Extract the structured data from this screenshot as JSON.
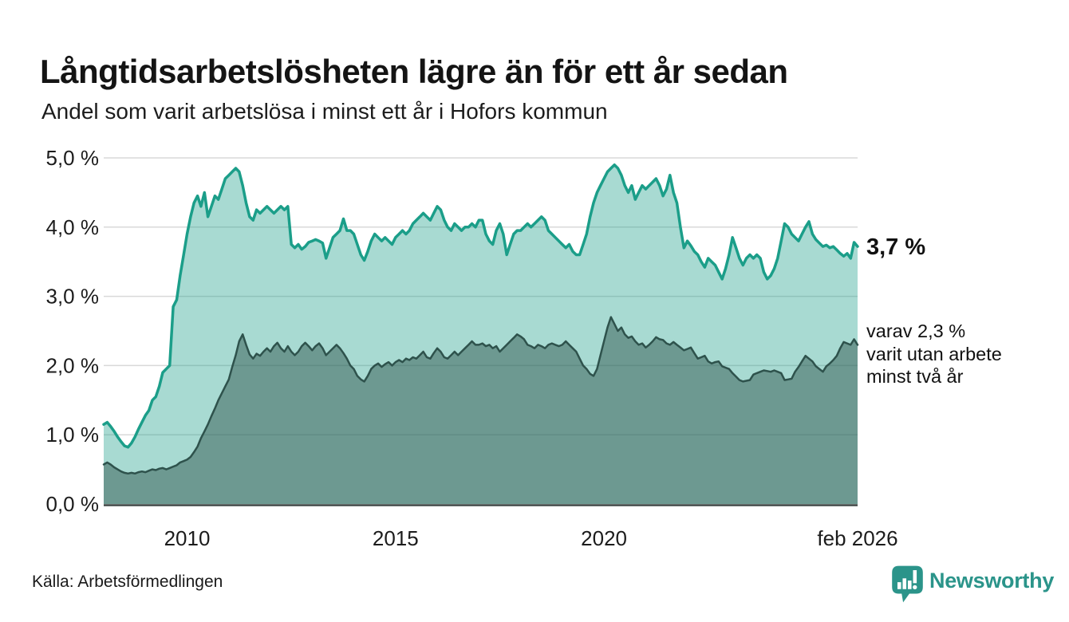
{
  "header": {
    "title": "Långtidsarbetslösheten lägre än för ett år sedan",
    "subtitle": "Andel som varit arbetslösa i minst ett år i Hofors kommun"
  },
  "annotations": {
    "latest_value": "3,7 %",
    "sub_line1": "varav 2,3 %",
    "sub_line2": "varit utan arbete",
    "sub_line3": "minst två år"
  },
  "footer": {
    "source": "Källa: Arbetsförmedlingen",
    "brand": "Newsworthy",
    "brand_icon": "bar-chart-pin-icon"
  },
  "colors": {
    "accent_teal": "#1b9e89",
    "accent_dark": "#2e524c",
    "light_fill_appearance": "#a5d6cf",
    "dark_fill_appearance": "#6f9e97",
    "gridline": "#d9d9d9",
    "baseline": "#3d4543",
    "text": "#1c1c1c",
    "brand_teal": "#2b948a"
  },
  "chart_data": {
    "type": "area",
    "title": "Långtidsarbetslösheten lägre än för ett år sedan",
    "subtitle": "Andel som varit arbetslösa i minst ett år i Hofors kommun",
    "unit": "%",
    "x_start": "2008-01",
    "x_end": "2026-02",
    "points_per_series": 218,
    "ylim": [
      0,
      5
    ],
    "grid": true,
    "legend": "none (annotated at line ends)",
    "y_ticks": [
      {
        "label": "5,0 %",
        "value": 5
      },
      {
        "label": "4,0 %",
        "value": 4
      },
      {
        "label": "3,0 %",
        "value": 3
      },
      {
        "label": "2,0 %",
        "value": 2
      },
      {
        "label": "1,0 %",
        "value": 1
      },
      {
        "label": "0,0 %",
        "value": 0
      }
    ],
    "x_ticks": [
      {
        "label": "2010",
        "month_index": 24
      },
      {
        "label": "2015",
        "month_index": 84
      },
      {
        "label": "2020",
        "month_index": 144
      },
      {
        "label": "feb 2026",
        "month_index": 217
      }
    ],
    "series": [
      {
        "name": "Arbetslösa minst ett år",
        "end_label": "3,7 %",
        "latest": 3.7,
        "color": "#1b9e89",
        "fill_opacity": 0.38,
        "stroke_width": 3.5,
        "values": [
          1.15,
          1.18,
          1.12,
          1.05,
          0.97,
          0.9,
          0.84,
          0.82,
          0.88,
          0.97,
          1.08,
          1.18,
          1.28,
          1.35,
          1.5,
          1.55,
          1.7,
          1.9,
          1.95,
          2.0,
          2.85,
          2.95,
          3.3,
          3.6,
          3.9,
          4.15,
          4.35,
          4.45,
          4.3,
          4.5,
          4.15,
          4.3,
          4.45,
          4.4,
          4.55,
          4.7,
          4.75,
          4.8,
          4.85,
          4.8,
          4.6,
          4.35,
          4.15,
          4.1,
          4.25,
          4.2,
          4.25,
          4.3,
          4.25,
          4.2,
          4.25,
          4.3,
          4.25,
          4.3,
          3.75,
          3.7,
          3.75,
          3.68,
          3.72,
          3.78,
          3.8,
          3.82,
          3.8,
          3.77,
          3.55,
          3.7,
          3.85,
          3.9,
          3.95,
          4.12,
          3.95,
          3.95,
          3.9,
          3.75,
          3.6,
          3.52,
          3.65,
          3.8,
          3.9,
          3.85,
          3.8,
          3.85,
          3.8,
          3.75,
          3.85,
          3.9,
          3.95,
          3.9,
          3.95,
          4.05,
          4.1,
          4.15,
          4.2,
          4.15,
          4.1,
          4.2,
          4.3,
          4.25,
          4.1,
          4.0,
          3.95,
          4.05,
          4.0,
          3.95,
          4.0,
          4.0,
          4.05,
          4.0,
          4.1,
          4.1,
          3.9,
          3.8,
          3.75,
          3.95,
          4.05,
          3.9,
          3.6,
          3.75,
          3.9,
          3.95,
          3.95,
          4.0,
          4.05,
          4.0,
          4.05,
          4.1,
          4.15,
          4.1,
          3.95,
          3.9,
          3.85,
          3.8,
          3.75,
          3.7,
          3.75,
          3.65,
          3.6,
          3.6,
          3.75,
          3.9,
          4.15,
          4.35,
          4.5,
          4.6,
          4.7,
          4.8,
          4.85,
          4.9,
          4.85,
          4.75,
          4.6,
          4.5,
          4.6,
          4.4,
          4.5,
          4.6,
          4.55,
          4.6,
          4.65,
          4.7,
          4.6,
          4.45,
          4.55,
          4.75,
          4.5,
          4.35,
          4.0,
          3.7,
          3.8,
          3.73,
          3.65,
          3.6,
          3.5,
          3.42,
          3.55,
          3.5,
          3.45,
          3.35,
          3.25,
          3.4,
          3.6,
          3.85,
          3.7,
          3.55,
          3.45,
          3.55,
          3.6,
          3.55,
          3.6,
          3.55,
          3.35,
          3.25,
          3.3,
          3.4,
          3.55,
          3.8,
          4.05,
          4.0,
          3.9,
          3.85,
          3.8,
          3.9,
          4.0,
          4.08,
          3.9,
          3.82,
          3.77,
          3.72,
          3.74,
          3.7,
          3.72,
          3.67,
          3.62,
          3.58,
          3.62,
          3.55,
          3.78,
          3.72
        ]
      },
      {
        "name": "varav utan arbete minst två år",
        "end_label": "varav 2,3 % varit utan arbete minst två år",
        "latest": 2.3,
        "color": "#2e524c",
        "fill_opacity": 0.48,
        "stroke_width": 2.5,
        "values": [
          0.57,
          0.6,
          0.57,
          0.53,
          0.5,
          0.47,
          0.45,
          0.44,
          0.45,
          0.44,
          0.46,
          0.47,
          0.46,
          0.48,
          0.5,
          0.49,
          0.51,
          0.52,
          0.5,
          0.52,
          0.54,
          0.56,
          0.6,
          0.62,
          0.64,
          0.68,
          0.75,
          0.83,
          0.95,
          1.05,
          1.15,
          1.27,
          1.38,
          1.5,
          1.6,
          1.7,
          1.8,
          1.98,
          2.15,
          2.35,
          2.45,
          2.3,
          2.16,
          2.1,
          2.17,
          2.14,
          2.2,
          2.25,
          2.2,
          2.28,
          2.33,
          2.25,
          2.2,
          2.28,
          2.2,
          2.15,
          2.2,
          2.28,
          2.33,
          2.28,
          2.22,
          2.28,
          2.32,
          2.25,
          2.15,
          2.2,
          2.25,
          2.3,
          2.25,
          2.18,
          2.1,
          2.0,
          1.95,
          1.85,
          1.8,
          1.77,
          1.85,
          1.95,
          2.0,
          2.03,
          1.98,
          2.02,
          2.05,
          2.0,
          2.05,
          2.08,
          2.05,
          2.1,
          2.08,
          2.12,
          2.1,
          2.15,
          2.2,
          2.12,
          2.1,
          2.18,
          2.25,
          2.2,
          2.12,
          2.1,
          2.15,
          2.2,
          2.15,
          2.2,
          2.25,
          2.3,
          2.35,
          2.3,
          2.3,
          2.32,
          2.28,
          2.3,
          2.25,
          2.28,
          2.2,
          2.25,
          2.3,
          2.35,
          2.4,
          2.45,
          2.42,
          2.38,
          2.3,
          2.28,
          2.25,
          2.3,
          2.28,
          2.25,
          2.3,
          2.32,
          2.3,
          2.28,
          2.3,
          2.35,
          2.3,
          2.25,
          2.2,
          2.1,
          2.0,
          1.95,
          1.88,
          1.85,
          1.95,
          2.15,
          2.35,
          2.55,
          2.7,
          2.6,
          2.5,
          2.55,
          2.45,
          2.4,
          2.42,
          2.35,
          2.3,
          2.32,
          2.26,
          2.3,
          2.35,
          2.41,
          2.38,
          2.37,
          2.32,
          2.3,
          2.34,
          2.3,
          2.26,
          2.22,
          2.24,
          2.26,
          2.18,
          2.1,
          2.12,
          2.14,
          2.06,
          2.03,
          2.05,
          2.06,
          1.99,
          1.97,
          1.95,
          1.89,
          1.84,
          1.79,
          1.77,
          1.78,
          1.79,
          1.87,
          1.89,
          1.91,
          1.93,
          1.92,
          1.91,
          1.93,
          1.91,
          1.89,
          1.79,
          1.8,
          1.81,
          1.91,
          1.98,
          2.06,
          2.14,
          2.1,
          2.06,
          1.99,
          1.95,
          1.91,
          1.99,
          2.03,
          2.08,
          2.14,
          2.25,
          2.34,
          2.32,
          2.3,
          2.38,
          2.3
        ]
      }
    ]
  }
}
